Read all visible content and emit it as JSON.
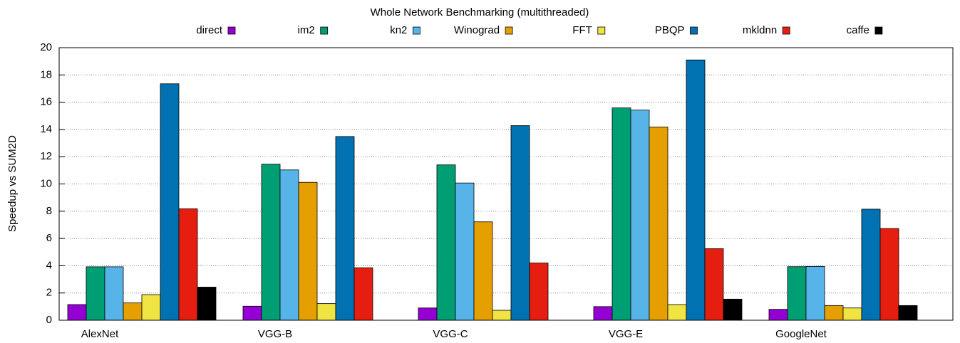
{
  "chart_data": {
    "type": "bar",
    "title": "Whole Network Benchmarking (multithreaded)",
    "y_label": "Speedup vs SUM2D",
    "categories": [
      "AlexNet",
      "VGG-B",
      "VGG-C",
      "VGG-E",
      "GoogleNet"
    ],
    "series": [
      {
        "name": "direct",
        "color": "#9400d3",
        "values": [
          1.15,
          1.03,
          0.9,
          1.0,
          0.8
        ]
      },
      {
        "name": "im2",
        "color": "#009e73",
        "values": [
          3.92,
          11.45,
          11.4,
          15.58,
          3.93
        ]
      },
      {
        "name": "kn2",
        "color": "#56b4e9",
        "values": [
          3.92,
          11.03,
          10.07,
          15.42,
          3.95
        ]
      },
      {
        "name": "Winograd",
        "color": "#e69f00",
        "values": [
          1.27,
          10.12,
          7.22,
          14.18,
          1.08
        ]
      },
      {
        "name": "FFT",
        "color": "#f0e442",
        "values": [
          1.88,
          1.22,
          0.73,
          1.15,
          0.9
        ]
      },
      {
        "name": "PBQP",
        "color": "#0072b2",
        "values": [
          17.35,
          13.48,
          14.28,
          19.1,
          8.15
        ]
      },
      {
        "name": "mkldnn",
        "color": "#e51e10",
        "values": [
          8.18,
          3.85,
          4.2,
          5.25,
          6.73
        ]
      },
      {
        "name": "caffe",
        "color": "#000000",
        "values": [
          2.43,
          0,
          0,
          1.55,
          1.08
        ]
      }
    ],
    "ylim": [
      0,
      20
    ],
    "yticks": [
      0,
      2,
      4,
      6,
      8,
      10,
      12,
      14,
      16,
      18,
      20
    ],
    "grid": true
  }
}
